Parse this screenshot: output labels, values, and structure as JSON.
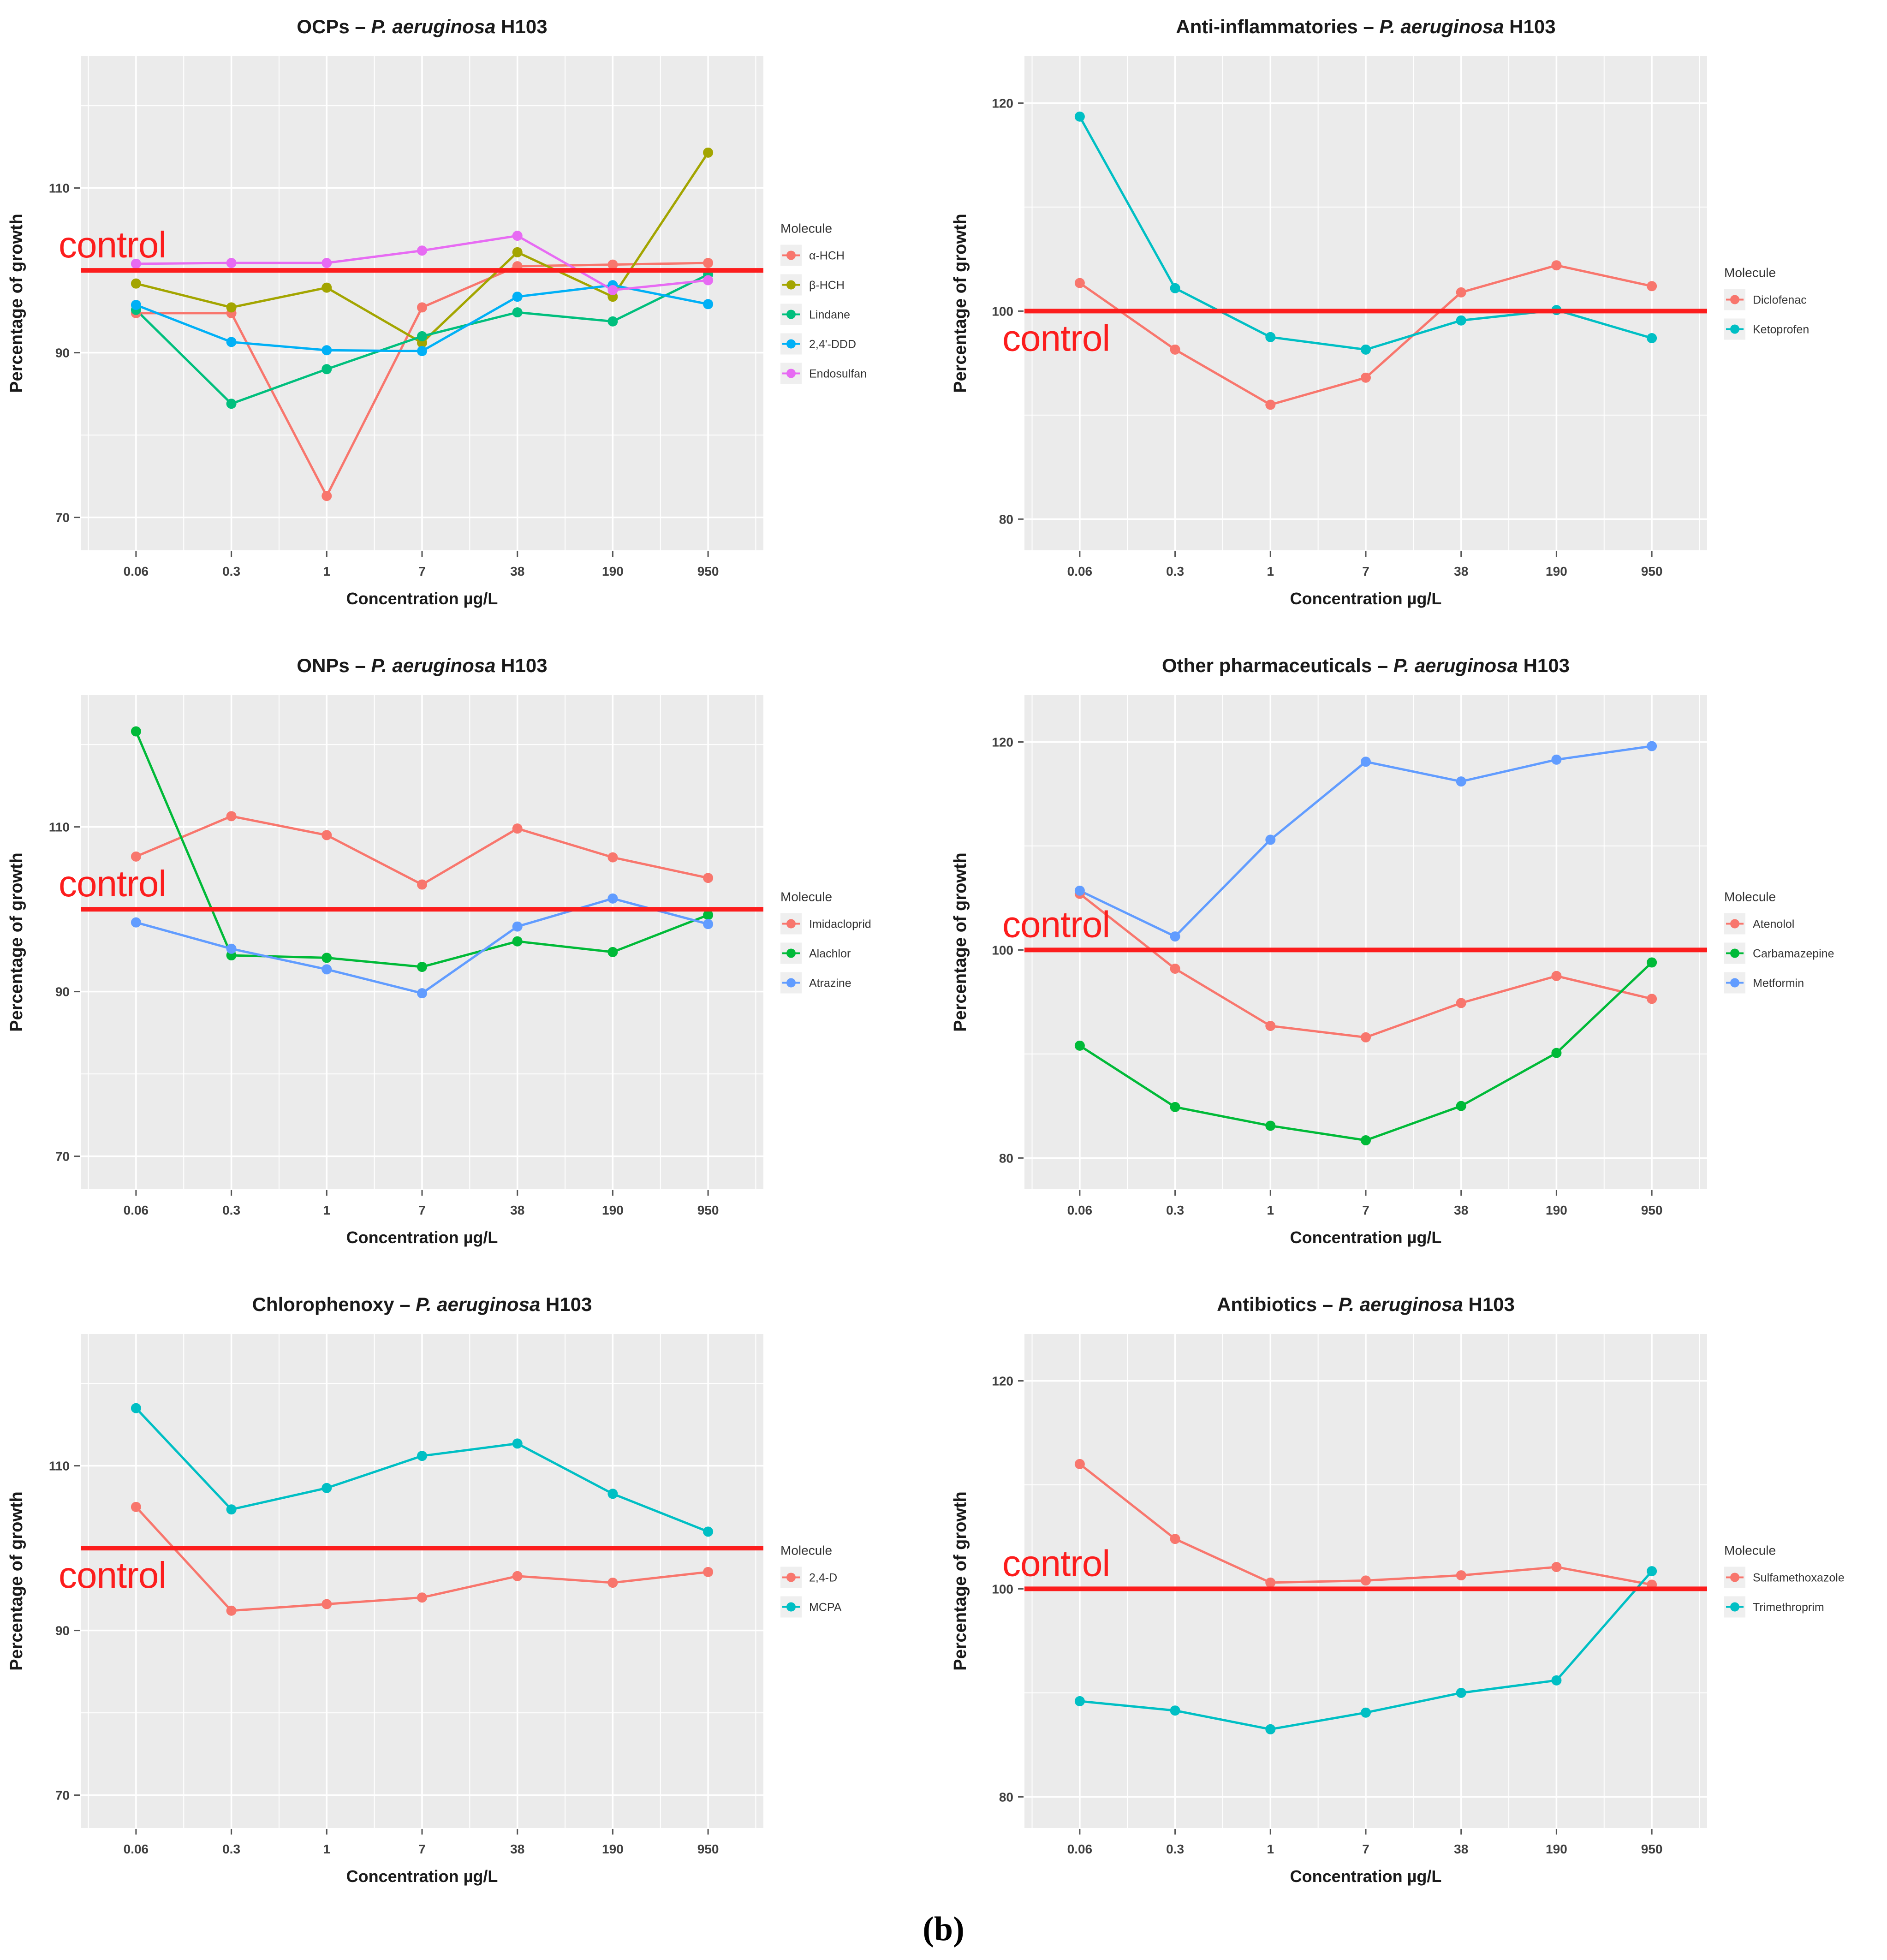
{
  "figure": {
    "caption": "(b)"
  },
  "colors": {
    "plot_bg": "#EBEBEB",
    "grid": "#FFFFFF",
    "axis_text": "#404040",
    "title_text": "#1A1A1A",
    "legend_text": "#333333",
    "legend_swatch_bg": "#EFEFEF",
    "control_red": "#FC1D1D"
  },
  "legend_title": "Molecule",
  "control_label": "control",
  "control_value": 100,
  "chart_data": [
    {
      "type": "line",
      "title_prefix": "OCPs – ",
      "title_italic": "P. aeruginosa",
      "title_suffix": " H103",
      "xlabel": "Concentration µg/L",
      "ylabel": "Percentage of growth",
      "categories": [
        "0.06",
        "0.3",
        "1",
        "7",
        "38",
        "190",
        "950"
      ],
      "y_ticks": [
        70,
        90,
        110
      ],
      "ylim": [
        66,
        126
      ],
      "grid": true,
      "legend_position": "right",
      "control_text": "above",
      "series": [
        {
          "name": "α-HCH",
          "color": "#F8766D",
          "values": [
            94.8,
            94.8,
            72.6,
            95.5,
            100.5,
            100.7,
            100.9
          ]
        },
        {
          "name": "β-HCH",
          "color": "#A3A500",
          "values": [
            98.4,
            95.5,
            97.9,
            91.2,
            102.2,
            96.8,
            114.3
          ]
        },
        {
          "name": "Lindane",
          "color": "#00BF7D",
          "values": [
            95.2,
            83.8,
            88.0,
            92.0,
            94.9,
            93.8,
            99.5
          ]
        },
        {
          "name": "2,4'-DDD",
          "color": "#00B0F6",
          "values": [
            95.8,
            91.3,
            90.3,
            90.2,
            96.8,
            98.2,
            95.9
          ]
        },
        {
          "name": "Endosulfan",
          "color": "#E76BF3",
          "values": [
            100.8,
            100.9,
            100.9,
            102.4,
            104.2,
            97.6,
            98.8
          ]
        }
      ]
    },
    {
      "type": "line",
      "title_prefix": "Anti-inflammatories – ",
      "title_italic": "P. aeruginosa",
      "title_suffix": " H103",
      "xlabel": "Concentration µg/L",
      "ylabel": "Percentage of growth",
      "categories": [
        "0.06",
        "0.3",
        "1",
        "7",
        "38",
        "190",
        "950"
      ],
      "y_ticks": [
        80,
        100,
        120
      ],
      "ylim": [
        77,
        124.5
      ],
      "grid": true,
      "legend_position": "right",
      "control_text": "below",
      "series": [
        {
          "name": "Diclofenac",
          "color": "#F8766D",
          "values": [
            102.7,
            96.3,
            91.0,
            93.6,
            101.8,
            104.4,
            102.4
          ]
        },
        {
          "name": "Ketoprofen",
          "color": "#00BFC4",
          "values": [
            118.7,
            102.2,
            97.5,
            96.3,
            99.1,
            100.1,
            97.4
          ]
        }
      ]
    },
    {
      "type": "line",
      "title_prefix": "ONPs – ",
      "title_italic": "P. aeruginosa",
      "title_suffix": " H103",
      "xlabel": "Concentration µg/L",
      "ylabel": "Percentage of growth",
      "categories": [
        "0.06",
        "0.3",
        "1",
        "7",
        "38",
        "190",
        "950"
      ],
      "y_ticks": [
        70,
        90,
        110
      ],
      "ylim": [
        66,
        126
      ],
      "grid": true,
      "legend_position": "right",
      "control_text": "above",
      "series": [
        {
          "name": "Imidacloprid",
          "color": "#F8766D",
          "values": [
            106.4,
            111.3,
            109.0,
            103.0,
            109.8,
            106.3,
            103.8
          ]
        },
        {
          "name": "Alachlor",
          "color": "#00BA38",
          "values": [
            121.6,
            94.4,
            94.1,
            93.0,
            96.1,
            94.8,
            99.3
          ]
        },
        {
          "name": "Atrazine",
          "color": "#619CFF",
          "values": [
            98.4,
            95.2,
            92.7,
            89.8,
            97.9,
            101.3,
            98.2
          ]
        }
      ]
    },
    {
      "type": "line",
      "title_prefix": "Other pharmaceuticals – ",
      "title_italic": "P. aeruginosa",
      "title_suffix": " H103",
      "xlabel": "Concentration µg/L",
      "ylabel": "Percentage of growth",
      "categories": [
        "0.06",
        "0.3",
        "1",
        "7",
        "38",
        "190",
        "950"
      ],
      "y_ticks": [
        80,
        100,
        120
      ],
      "ylim": [
        77,
        124.5
      ],
      "grid": true,
      "legend_position": "right",
      "control_text": "above",
      "series": [
        {
          "name": "Atenolol",
          "color": "#F8766D",
          "values": [
            105.4,
            98.2,
            92.7,
            91.6,
            94.9,
            97.5,
            95.3
          ]
        },
        {
          "name": "Carbamazepine",
          "color": "#00BA38",
          "values": [
            90.8,
            84.9,
            83.1,
            81.7,
            85.0,
            90.1,
            98.8
          ]
        },
        {
          "name": "Metformin",
          "color": "#619CFF",
          "values": [
            105.7,
            101.3,
            110.6,
            118.1,
            116.2,
            118.3,
            119.6
          ]
        }
      ]
    },
    {
      "type": "line",
      "title_prefix": "Chlorophenoxy – ",
      "title_italic": "P. aeruginosa",
      "title_suffix": " H103",
      "xlabel": "Concentration µg/L",
      "ylabel": "Percentage of growth",
      "categories": [
        "0.06",
        "0.3",
        "1",
        "7",
        "38",
        "190",
        "950"
      ],
      "y_ticks": [
        70,
        90,
        110
      ],
      "ylim": [
        66,
        126
      ],
      "grid": true,
      "legend_position": "right",
      "control_text": "below",
      "series": [
        {
          "name": "2,4-D",
          "color": "#F8766D",
          "values": [
            105.0,
            92.4,
            93.2,
            94.0,
            96.6,
            95.8,
            97.1
          ]
        },
        {
          "name": "MCPA",
          "color": "#00BFC4",
          "values": [
            117.0,
            104.7,
            107.3,
            111.2,
            112.7,
            106.6,
            102.0
          ]
        }
      ]
    },
    {
      "type": "line",
      "title_prefix": "Antibiotics – ",
      "title_italic": "P. aeruginosa",
      "title_suffix": " H103",
      "xlabel": "Concentration µg/L",
      "ylabel": "Percentage of growth",
      "categories": [
        "0.06",
        "0.3",
        "1",
        "7",
        "38",
        "190",
        "950"
      ],
      "y_ticks": [
        80,
        100,
        120
      ],
      "ylim": [
        77,
        124.5
      ],
      "grid": true,
      "legend_position": "right",
      "control_text": "above",
      "series": [
        {
          "name": "Sulfamethoxazole",
          "color": "#F8766D",
          "values": [
            112.0,
            104.8,
            100.6,
            100.8,
            101.3,
            102.1,
            100.4
          ]
        },
        {
          "name": "Trimethroprim",
          "color": "#00BFC4",
          "values": [
            89.2,
            88.3,
            86.5,
            88.1,
            90.0,
            91.2,
            101.7
          ]
        }
      ]
    }
  ]
}
